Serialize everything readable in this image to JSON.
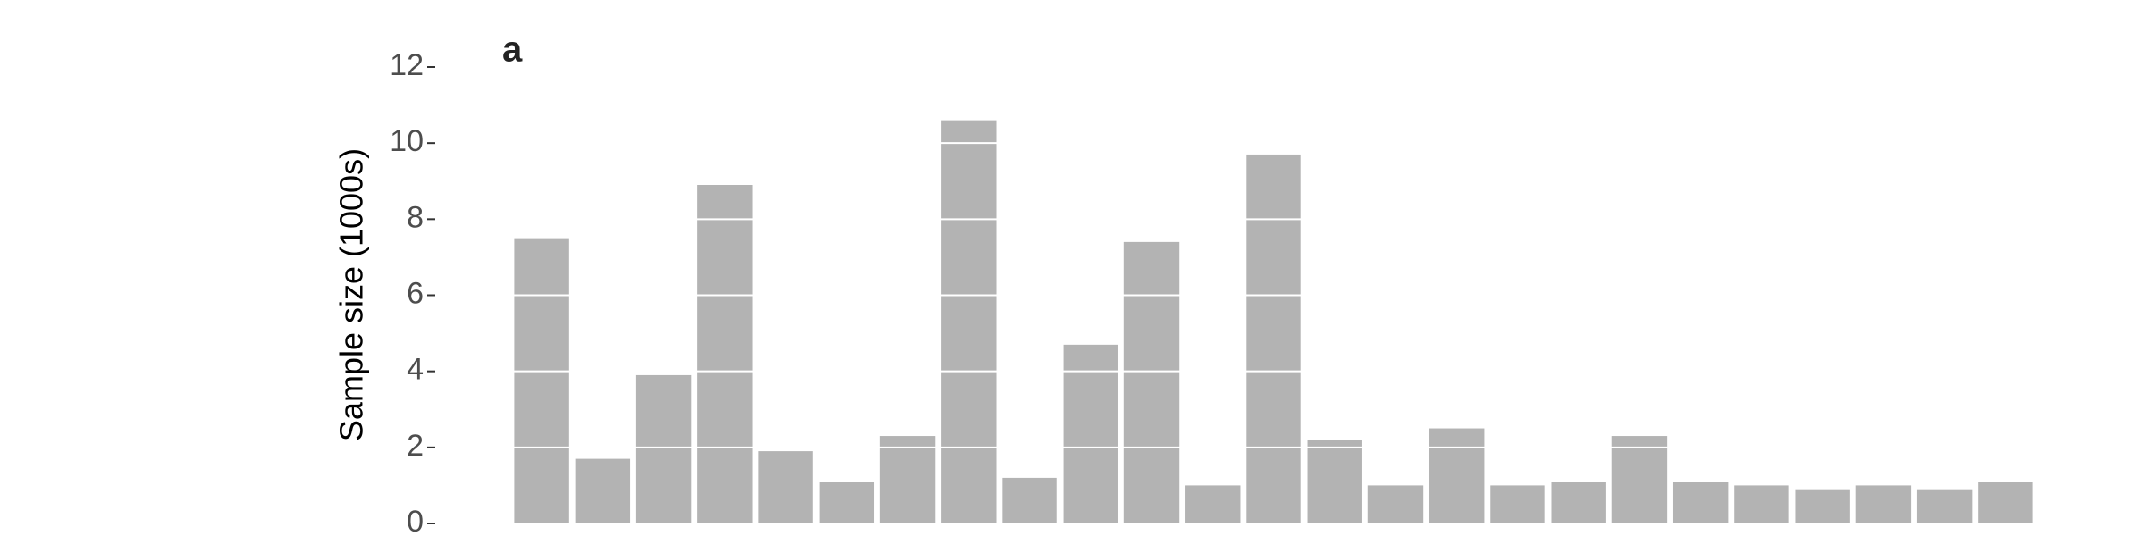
{
  "chart_data": {
    "type": "bar",
    "title": "a",
    "ylabel": "Sample size (1000s)",
    "categories": [
      null,
      null,
      null,
      null,
      null,
      null,
      null,
      null,
      null,
      null,
      null,
      null,
      null,
      null,
      null,
      null,
      null,
      null,
      null,
      null,
      null,
      null,
      null,
      null,
      null
    ],
    "values": [
      7.5,
      1.7,
      3.9,
      8.9,
      1.9,
      1.1,
      2.3,
      10.6,
      1.2,
      4.7,
      7.4,
      1.0,
      9.7,
      2.2,
      1.0,
      2.5,
      1.0,
      1.1,
      2.3,
      1.1,
      1.0,
      0.9,
      1.0,
      0.9,
      1.1
    ],
    "color": "#b3b3b3",
    "grid_color": "#ffffff",
    "ylim": [
      0,
      12
    ],
    "yticks": [
      0,
      2,
      4,
      6,
      8,
      10,
      12
    ],
    "grid": true
  }
}
